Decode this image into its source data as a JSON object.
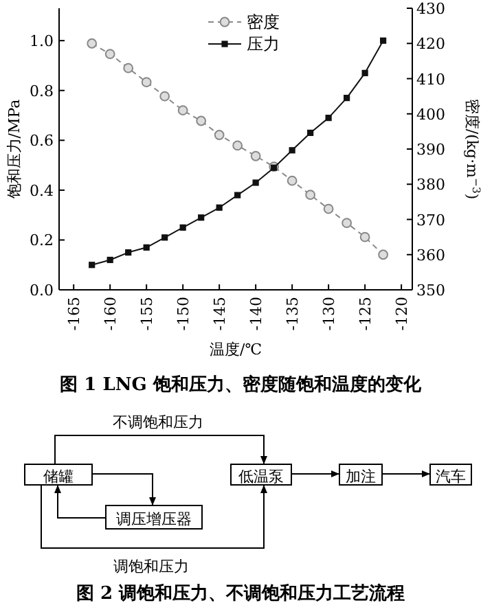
{
  "chart_data": [
    {
      "type": "line",
      "title": "图 1   LNG 饱和压力、密度随饱和温度的变化",
      "xlabel": "温度/℃",
      "ylabel": "饱和压力/MPa",
      "y2label": "密度/(kg·m$^{−3}$)",
      "x": [
        -162.5,
        -160,
        -157.5,
        -155,
        -152.5,
        -150,
        -147.5,
        -145,
        -142.5,
        -140,
        -137.5,
        -135,
        -132.5,
        -130,
        -127.5,
        -125,
        -122.5
      ],
      "series": [
        {
          "name": "密度",
          "color": "#888888",
          "marker": "circle",
          "line_style": "dashed",
          "axis": "y2",
          "values": [
            420,
            417,
            413,
            409,
            405,
            401,
            398,
            394,
            391,
            388,
            385,
            381,
            377,
            373,
            369,
            365,
            360
          ]
        },
        {
          "name": "压力",
          "color": "#111111",
          "marker": "square",
          "line_style": "solid",
          "values": [
            0.1,
            0.12,
            0.15,
            0.17,
            0.21,
            0.25,
            0.29,
            0.33,
            0.38,
            0.43,
            0.49,
            0.56,
            0.63,
            0.69,
            0.77,
            0.87,
            1.0
          ]
        }
      ],
      "xlim": [
        -167,
        -118.5
      ],
      "xticks": [
        -165,
        -160,
        -155,
        -150,
        -145,
        -140,
        -135,
        -130,
        -125,
        -120
      ],
      "ylim": [
        0,
        1.13
      ],
      "yticks": [
        {
          "value": 0,
          "label": "0.0"
        },
        {
          "value": 0.2,
          "label": "0.2"
        },
        {
          "value": 0.4,
          "label": "0.4"
        },
        {
          "value": 0.6,
          "label": "0.6"
        },
        {
          "value": 0.8,
          "label": "0.8"
        },
        {
          "value": 1,
          "label": "1.0"
        }
      ],
      "y2lim": [
        350,
        430
      ],
      "y2ticks": [
        350,
        360,
        370,
        380,
        390,
        400,
        410,
        420,
        430
      ],
      "legend": "top",
      "grid": false
    },
    {
      "type": "other",
      "title": "图 2   调饱和压力、不调饱和压力工艺流程",
      "annotations": [
        "储罐",
        "调压增压器",
        "低温泵",
        "加注",
        "汽车",
        "不调饱和压力",
        "调饱和压力"
      ]
    }
  ]
}
